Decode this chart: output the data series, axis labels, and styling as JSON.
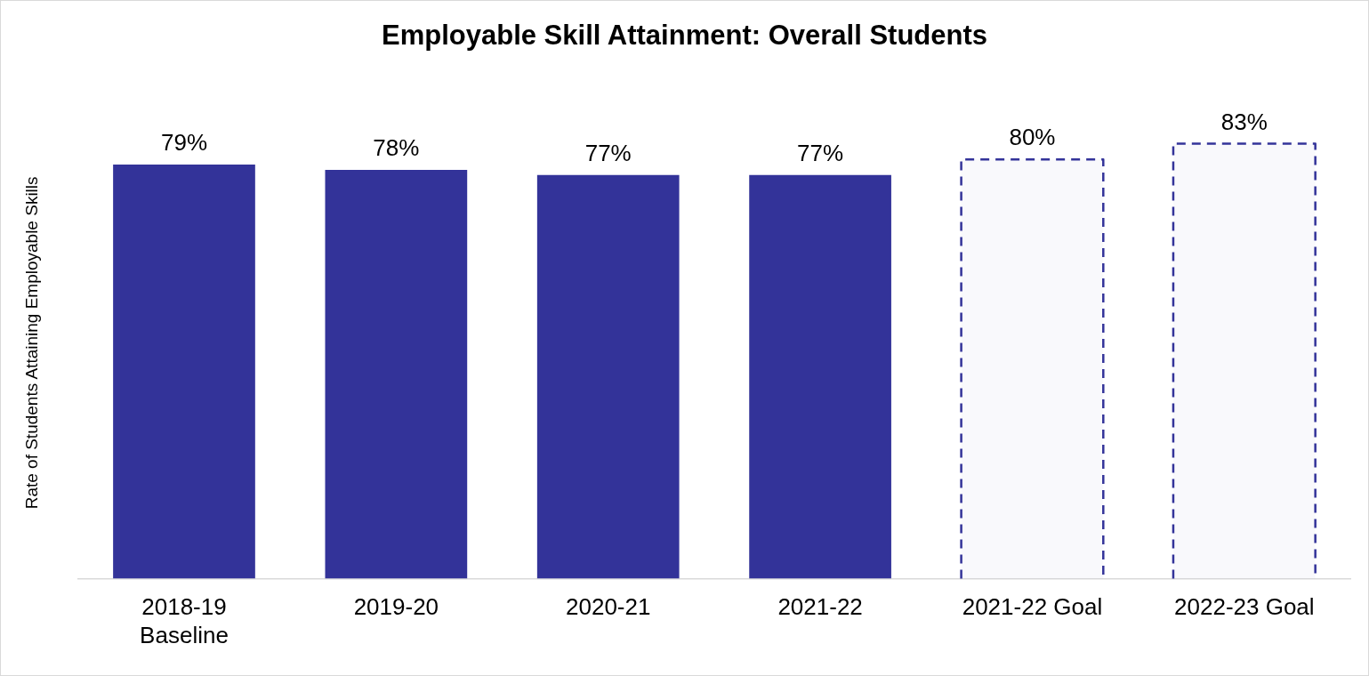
{
  "chart_data": {
    "type": "bar",
    "title": "Employable Skill Attainment: Overall Students",
    "ylabel": "Rate of Students Attaining Employable Skills",
    "categories": [
      "2018-19\nBaseline",
      "2019-20",
      "2020-21",
      "2021-22",
      "2021-22 Goal",
      "2022-23 Goal"
    ],
    "series": [
      {
        "color": "#333399",
        "values": [
          79,
          78,
          77,
          77,
          null,
          null
        ],
        "value_labels": [
          "79%",
          "78%",
          "77%",
          "77%",
          null,
          null
        ]
      },
      {
        "color": "#333399",
        "line_style": "dashed",
        "values": [
          null,
          null,
          null,
          null,
          80,
          83
        ],
        "value_labels": [
          null,
          null,
          null,
          null,
          "80%",
          "83%"
        ]
      }
    ],
    "tick_labels": "x",
    "grid": false,
    "legend": false
  }
}
